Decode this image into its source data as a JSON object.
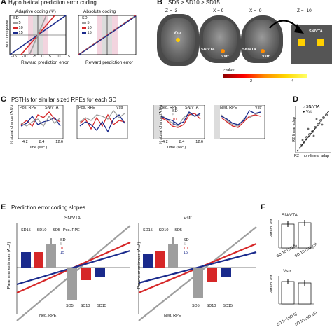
{
  "panelA": {
    "letter": "A",
    "title": "Hypothetical prediction error coding",
    "left_title": "Adaptive coding (Ψ)",
    "right_title": "Absolute coding",
    "ylabel": "BOLD response",
    "xlabel": "Reward prediction error",
    "xticks": [
      "-15",
      "-10",
      "-5",
      "0",
      "5",
      "10",
      "15"
    ],
    "legend_title": "SD",
    "legend": [
      {
        "label": "5",
        "color": "#9e9e9e"
      },
      {
        "label": "10",
        "color": "#d62728"
      },
      {
        "label": "15",
        "color": "#1a2a8c"
      }
    ]
  },
  "panelB": {
    "letter": "B",
    "title": "SD5 > SD10 > SD15",
    "slices": [
      "Z = -3",
      "X = 9",
      "X = -9",
      "Z = -10"
    ],
    "labels": {
      "vstr": "Vstr",
      "snvta": "SN/VTA"
    },
    "colorbar_label": "t-value",
    "colorbar_ticks": [
      "2",
      "4"
    ]
  },
  "panelC": {
    "letter": "C",
    "title": "PSTHs for similar sized RPEs for each SD",
    "ylabel": "% signal change (A.U.)",
    "xlabel": "Time (sec.)",
    "xticks": [
      "4.2",
      "8.4",
      "12.6"
    ],
    "subplots": [
      {
        "label_left": "Pos. RPE",
        "label_right": "SN/VTA"
      },
      {
        "label_left": "Pos. RPE",
        "label_right": "Vstr"
      },
      {
        "label_left": "Neg. RPE",
        "label_right": "SN/VTA"
      },
      {
        "label_left": "Neg. RPE",
        "label_right": "Vstr"
      }
    ],
    "legend_title": "SD",
    "legend": [
      "5",
      "10",
      "15"
    ]
  },
  "panelD": {
    "letter": "D",
    "legend": [
      "SN/VTA",
      "Vstr"
    ],
    "ylabel": "R2 linear adap",
    "xlabel": "non-linear adap",
    "corner": "R2"
  },
  "panelE": {
    "letter": "E",
    "title": "Prediction error coding slopes",
    "ylabel": "Parameter estimates (A.U.)",
    "left": {
      "region": "SN/VTA",
      "pos_label": "Pos. RPE",
      "neg_label": "Neg. RPE",
      "bars_pos": [
        {
          "sd": "SD15",
          "color": "#1a2a8c"
        },
        {
          "sd": "SD10",
          "color": "#d62728"
        },
        {
          "sd": "SD5",
          "color": "#9e9e9e"
        }
      ],
      "bars_neg": [
        {
          "sd": "SD5",
          "color": "#9e9e9e"
        },
        {
          "sd": "SD10",
          "color": "#d62728"
        },
        {
          "sd": "SD15",
          "color": "#1a2a8c"
        }
      ]
    },
    "right": {
      "region": "Vstr",
      "bars_pos": [
        {
          "sd": "SD15",
          "color": "#1a2a8c"
        },
        {
          "sd": "SD10",
          "color": "#d62728"
        },
        {
          "sd": "SD5",
          "color": "#9e9e9e"
        }
      ],
      "bars_neg": [
        {
          "sd": "SD5",
          "color": "#9e9e9e"
        },
        {
          "sd": "SD10",
          "color": "#d62728"
        },
        {
          "sd": "SD15",
          "color": "#1a2a8c"
        }
      ],
      "neg_label": "Neg. RPE"
    },
    "legend_title": "SD",
    "legend": [
      "5",
      "10",
      "15"
    ]
  },
  "panelF": {
    "letter": "F",
    "top_region": "SN/VTA",
    "bottom_region": "Vstr",
    "ylabel": "Param. est.",
    "xticks": [
      "SD 10 (SD 5)",
      "SD 10 (SD 15)"
    ]
  }
}
